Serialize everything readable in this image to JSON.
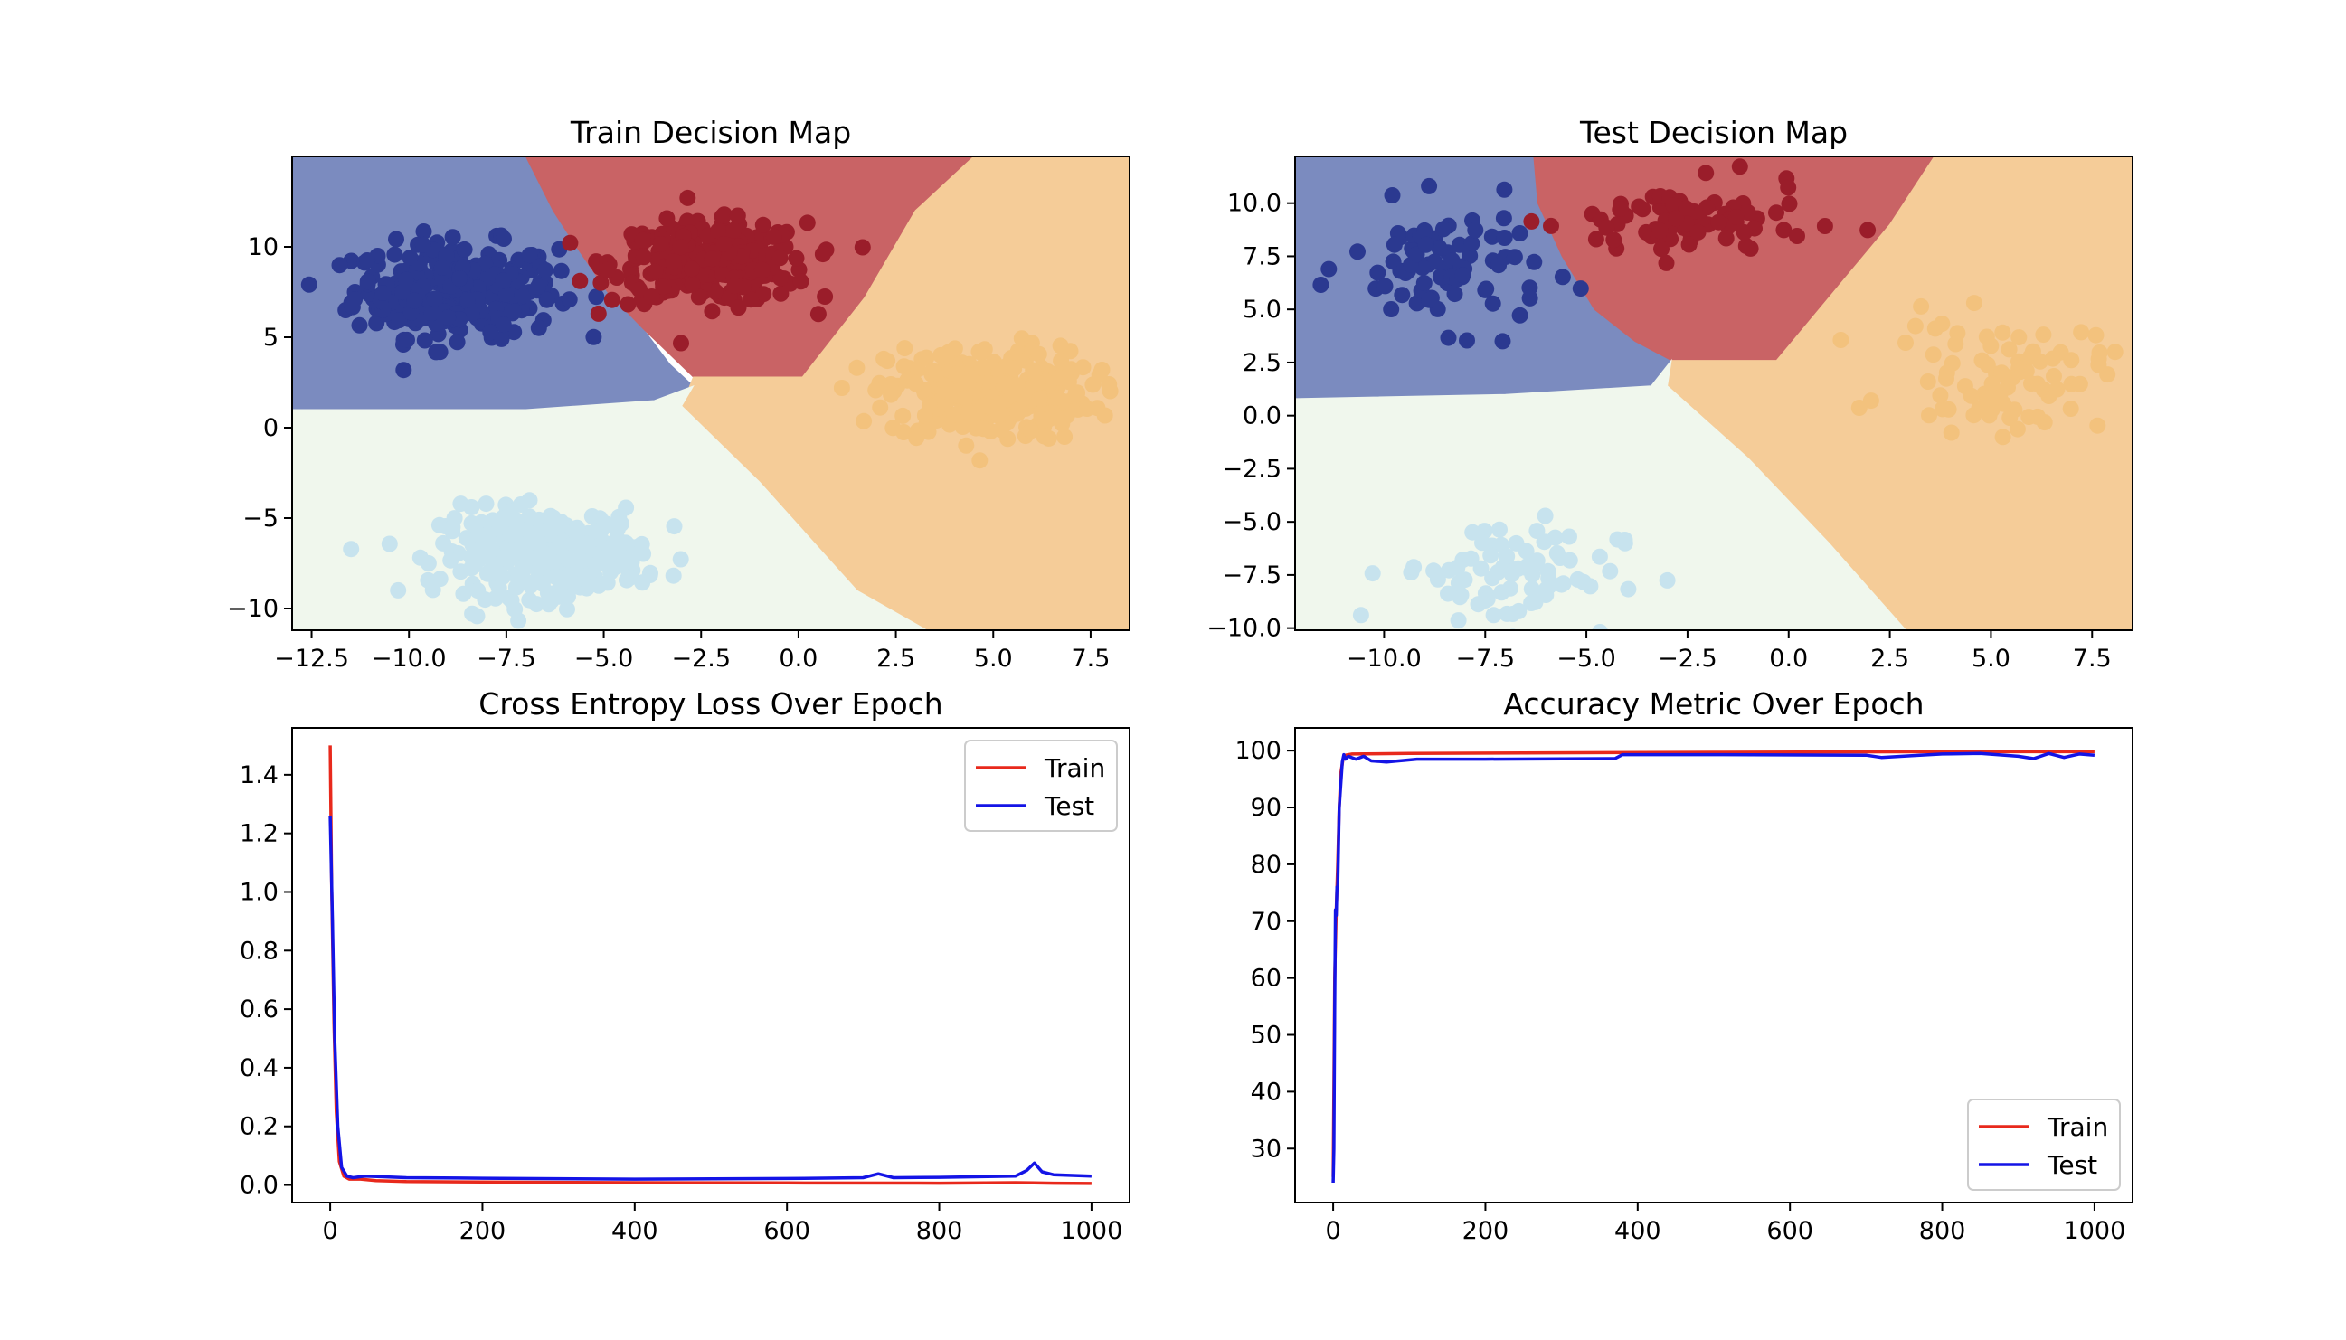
{
  "chart_data": [
    {
      "type": "scatter",
      "title": "Train Decision Map",
      "xlim": [
        -13.0,
        8.5
      ],
      "ylim": [
        -11.2,
        15.0
      ],
      "x_ticks": [
        -12.5,
        -10.0,
        -7.5,
        -5.0,
        -2.5,
        0.0,
        2.5,
        5.0,
        7.5
      ],
      "x_tick_labels": [
        "−12.5",
        "−10.0",
        "−7.5",
        "−5.0",
        "−2.5",
        "0.0",
        "2.5",
        "5.0",
        "7.5"
      ],
      "y_ticks": [
        -10,
        -5,
        0,
        5,
        10
      ],
      "y_tick_labels": [
        "−10",
        "−5",
        "0",
        "5",
        "10"
      ],
      "regions": [
        {
          "name": "class-0",
          "color": "#7b8bbf",
          "polygon": [
            [
              -13.0,
              15.0
            ],
            [
              -7.0,
              15.0
            ],
            [
              -6.3,
              12.0
            ],
            [
              -5.7,
              10.0
            ],
            [
              -4.9,
              7.5
            ],
            [
              -4.0,
              5.5
            ],
            [
              -3.3,
              3.5
            ],
            [
              -2.7,
              2.3
            ],
            [
              -3.7,
              1.5
            ],
            [
              -7.0,
              1.0
            ],
            [
              -13.0,
              1.0
            ]
          ]
        },
        {
          "name": "class-1",
          "color": "#c96365",
          "polygon": [
            [
              -7.0,
              15.0
            ],
            [
              4.5,
              15.0
            ],
            [
              3.0,
              12.0
            ],
            [
              1.7,
              7.2
            ],
            [
              0.1,
              2.8
            ],
            [
              -2.7,
              2.8
            ],
            [
              -4.0,
              5.5
            ],
            [
              -4.9,
              7.5
            ],
            [
              -5.7,
              10.0
            ],
            [
              -6.3,
              12.0
            ]
          ]
        },
        {
          "name": "class-2",
          "color": "#f5cc98",
          "polygon": [
            [
              4.5,
              15.0
            ],
            [
              8.5,
              15.0
            ],
            [
              8.5,
              -11.2
            ],
            [
              3.3,
              -11.2
            ],
            [
              1.5,
              -9.0
            ],
            [
              -1.0,
              -3.0
            ],
            [
              -3.0,
              1.2
            ],
            [
              -2.7,
              2.8
            ],
            [
              0.1,
              2.8
            ],
            [
              1.7,
              7.2
            ],
            [
              3.0,
              12.0
            ]
          ]
        },
        {
          "name": "class-3",
          "color": "#f0f7ed",
          "polygon": [
            [
              -13.0,
              1.0
            ],
            [
              -7.0,
              1.0
            ],
            [
              -3.7,
              1.5
            ],
            [
              -2.7,
              2.3
            ],
            [
              -3.0,
              1.2
            ],
            [
              -1.0,
              -3.0
            ],
            [
              1.5,
              -9.0
            ],
            [
              3.3,
              -11.2
            ],
            [
              -13.0,
              -11.2
            ]
          ]
        }
      ],
      "clusters": [
        {
          "name": "class-0",
          "color": "#2b3990",
          "center": [
            -8.8,
            7.6
          ],
          "spread": [
            1.3,
            1.3
          ],
          "count": 300,
          "marker_radius": 9
        },
        {
          "name": "class-1",
          "color": "#9a1d2a",
          "center": [
            -2.3,
            9.1
          ],
          "spread": [
            1.25,
            1.1
          ],
          "count": 300,
          "marker_radius": 9
        },
        {
          "name": "class-2",
          "color": "#f3c27d",
          "center": [
            4.9,
            1.9
          ],
          "spread": [
            1.3,
            1.3
          ],
          "count": 300,
          "marker_radius": 9
        },
        {
          "name": "class-3",
          "color": "#c7e3ee",
          "center": [
            -6.6,
            -6.9
          ],
          "spread": [
            1.3,
            1.2
          ],
          "count": 300,
          "marker_radius": 9
        }
      ]
    },
    {
      "type": "scatter",
      "title": "Test Decision Map",
      "xlim": [
        -12.2,
        8.5
      ],
      "ylim": [
        -10.1,
        12.2
      ],
      "x_ticks": [
        -10.0,
        -7.5,
        -5.0,
        -2.5,
        0.0,
        2.5,
        5.0,
        7.5
      ],
      "x_tick_labels": [
        "−10.0",
        "−7.5",
        "−5.0",
        "−2.5",
        "0.0",
        "2.5",
        "5.0",
        "7.5"
      ],
      "y_ticks": [
        -10.0,
        -7.5,
        -5.0,
        -2.5,
        0.0,
        2.5,
        5.0,
        7.5,
        10.0
      ],
      "y_tick_labels": [
        "−10.0",
        "−7.5",
        "−5.0",
        "−2.5",
        "0.0",
        "2.5",
        "5.0",
        "7.5",
        "10.0"
      ],
      "regions": [
        {
          "name": "class-0",
          "color": "#7b8bbf",
          "polygon": [
            [
              -12.2,
              12.2
            ],
            [
              -6.3,
              12.2
            ],
            [
              -6.2,
              10.0
            ],
            [
              -5.6,
              7.5
            ],
            [
              -4.8,
              5.0
            ],
            [
              -3.8,
              3.5
            ],
            [
              -2.9,
              2.6
            ],
            [
              -3.4,
              1.4
            ],
            [
              -7.0,
              1.0
            ],
            [
              -12.2,
              0.8
            ]
          ]
        },
        {
          "name": "class-1",
          "color": "#c96365",
          "polygon": [
            [
              -6.3,
              12.2
            ],
            [
              3.6,
              12.2
            ],
            [
              2.5,
              9.0
            ],
            [
              -0.3,
              2.6
            ],
            [
              -2.9,
              2.6
            ],
            [
              -3.8,
              3.5
            ],
            [
              -4.8,
              5.0
            ],
            [
              -5.6,
              7.5
            ],
            [
              -6.2,
              10.0
            ]
          ]
        },
        {
          "name": "class-2",
          "color": "#f5cc98",
          "polygon": [
            [
              3.6,
              12.2
            ],
            [
              8.5,
              12.2
            ],
            [
              8.5,
              -10.1
            ],
            [
              2.9,
              -10.1
            ],
            [
              1.0,
              -6.0
            ],
            [
              -1.0,
              -2.0
            ],
            [
              -3.0,
              1.4
            ],
            [
              -2.9,
              2.6
            ],
            [
              -0.3,
              2.6
            ],
            [
              2.5,
              9.0
            ]
          ]
        },
        {
          "name": "class-3",
          "color": "#f0f7ed",
          "polygon": [
            [
              -12.2,
              0.8
            ],
            [
              -7.0,
              1.0
            ],
            [
              -3.4,
              1.4
            ],
            [
              -2.9,
              2.6
            ],
            [
              -3.0,
              1.4
            ],
            [
              -1.0,
              -2.0
            ],
            [
              1.0,
              -6.0
            ],
            [
              2.9,
              -10.1
            ],
            [
              -12.2,
              -10.1
            ]
          ]
        }
      ],
      "clusters": [
        {
          "name": "class-0",
          "color": "#2b3990",
          "center": [
            -8.4,
            7.0
          ],
          "spread": [
            1.2,
            1.4
          ],
          "count": 80,
          "marker_radius": 9
        },
        {
          "name": "class-1",
          "color": "#9a1d2a",
          "center": [
            -2.5,
            9.1
          ],
          "spread": [
            1.5,
            0.9
          ],
          "count": 80,
          "marker_radius": 9
        },
        {
          "name": "class-2",
          "color": "#f3c27d",
          "center": [
            5.2,
            1.9
          ],
          "spread": [
            1.3,
            1.3
          ],
          "count": 80,
          "marker_radius": 9
        },
        {
          "name": "class-3",
          "color": "#c7e3ee",
          "center": [
            -7.0,
            -7.4
          ],
          "spread": [
            1.4,
            1.3
          ],
          "count": 80,
          "marker_radius": 9
        }
      ]
    },
    {
      "type": "line",
      "title": "Cross Entropy Loss Over Epoch",
      "xlim": [
        -50,
        1050
      ],
      "ylim": [
        -0.06,
        1.56
      ],
      "x_ticks": [
        0,
        200,
        400,
        600,
        800,
        1000
      ],
      "x_tick_labels": [
        "0",
        "200",
        "400",
        "600",
        "800",
        "1000"
      ],
      "y_ticks": [
        0.0,
        0.2,
        0.4,
        0.6,
        0.8,
        1.0,
        1.2,
        1.4
      ],
      "y_tick_labels": [
        "0.0",
        "0.2",
        "0.4",
        "0.6",
        "0.8",
        "1.0",
        "1.2",
        "1.4"
      ],
      "legend_position": "upper-right",
      "series": [
        {
          "name": "Train",
          "color": "#e8291c",
          "points": [
            [
              0,
              1.5
            ],
            [
              2,
              1.0
            ],
            [
              5,
              0.55
            ],
            [
              8,
              0.25
            ],
            [
              12,
              0.08
            ],
            [
              18,
              0.03
            ],
            [
              25,
              0.02
            ],
            [
              40,
              0.02
            ],
            [
              60,
              0.015
            ],
            [
              100,
              0.012
            ],
            [
              200,
              0.01
            ],
            [
              400,
              0.008
            ],
            [
              600,
              0.007
            ],
            [
              800,
              0.006
            ],
            [
              900,
              0.008
            ],
            [
              950,
              0.006
            ],
            [
              1000,
              0.005
            ]
          ]
        },
        {
          "name": "Test",
          "color": "#1414e6",
          "points": [
            [
              0,
              1.26
            ],
            [
              3,
              0.9
            ],
            [
              6,
              0.5
            ],
            [
              10,
              0.2
            ],
            [
              15,
              0.06
            ],
            [
              22,
              0.03
            ],
            [
              30,
              0.025
            ],
            [
              45,
              0.03
            ],
            [
              70,
              0.028
            ],
            [
              100,
              0.025
            ],
            [
              200,
              0.023
            ],
            [
              400,
              0.02
            ],
            [
              600,
              0.022
            ],
            [
              700,
              0.025
            ],
            [
              720,
              0.038
            ],
            [
              740,
              0.025
            ],
            [
              800,
              0.026
            ],
            [
              900,
              0.03
            ],
            [
              915,
              0.05
            ],
            [
              925,
              0.075
            ],
            [
              935,
              0.045
            ],
            [
              950,
              0.035
            ],
            [
              1000,
              0.03
            ]
          ]
        }
      ]
    },
    {
      "type": "line",
      "title": "Accuracy Metric Over Epoch",
      "xlim": [
        -50,
        1050
      ],
      "ylim": [
        20.5,
        104.0
      ],
      "x_ticks": [
        0,
        200,
        400,
        600,
        800,
        1000
      ],
      "x_tick_labels": [
        "0",
        "200",
        "400",
        "600",
        "800",
        "1000"
      ],
      "y_ticks": [
        30,
        40,
        50,
        60,
        70,
        80,
        90,
        100
      ],
      "y_tick_labels": [
        "30",
        "40",
        "50",
        "60",
        "70",
        "80",
        "90",
        "100"
      ],
      "legend_position": "lower-right",
      "series": [
        {
          "name": "Train",
          "color": "#e8291c",
          "points": [
            [
              0,
              25
            ],
            [
              2,
              60
            ],
            [
              4,
              72
            ],
            [
              6,
              80
            ],
            [
              8,
              90
            ],
            [
              10,
              96
            ],
            [
              13,
              98.5
            ],
            [
              16,
              99.2
            ],
            [
              25,
              99.4
            ],
            [
              100,
              99.5
            ],
            [
              250,
              99.6
            ],
            [
              500,
              99.7
            ],
            [
              800,
              99.8
            ],
            [
              1000,
              99.8
            ]
          ]
        },
        {
          "name": "Test",
          "color": "#1414e6",
          "points": [
            [
              0,
              24
            ],
            [
              1,
              30
            ],
            [
              2,
              55
            ],
            [
              3,
              72
            ],
            [
              4,
              71
            ],
            [
              5,
              76
            ],
            [
              6,
              76
            ],
            [
              8,
              90
            ],
            [
              10,
              94
            ],
            [
              12,
              98
            ],
            [
              14,
              99.3
            ],
            [
              16,
              98.5
            ],
            [
              20,
              99.0
            ],
            [
              30,
              98.5
            ],
            [
              40,
              99.0
            ],
            [
              50,
              98.2
            ],
            [
              70,
              98.0
            ],
            [
              110,
              98.5
            ],
            [
              200,
              98.5
            ],
            [
              370,
              98.6
            ],
            [
              380,
              99.3
            ],
            [
              500,
              99.3
            ],
            [
              700,
              99.2
            ],
            [
              720,
              98.8
            ],
            [
              760,
              99.1
            ],
            [
              800,
              99.4
            ],
            [
              850,
              99.5
            ],
            [
              900,
              99.0
            ],
            [
              920,
              98.6
            ],
            [
              940,
              99.5
            ],
            [
              960,
              98.8
            ],
            [
              980,
              99.4
            ],
            [
              1000,
              99.2
            ]
          ]
        }
      ]
    }
  ]
}
